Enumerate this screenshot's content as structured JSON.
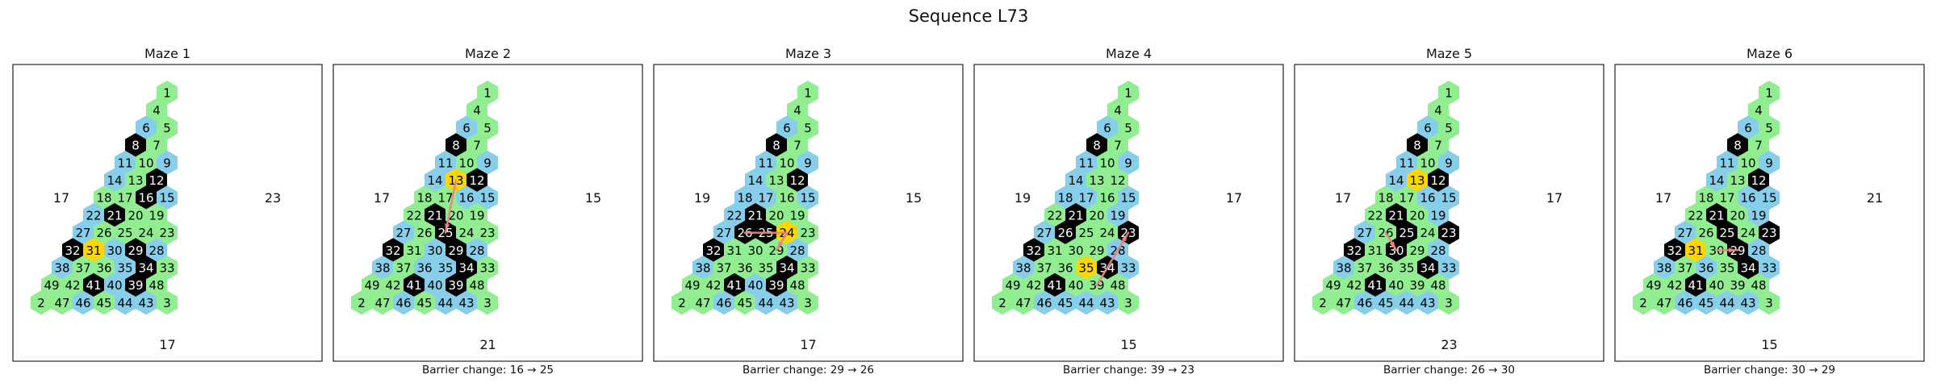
{
  "title": "Sequence L73",
  "colors": {
    "green": "#90EE90",
    "blue": "#87CEEB",
    "black": "#000000",
    "yellow": "#FFD700",
    "path": "#F08080"
  },
  "layout_nodes": [
    {
      "id": 1,
      "row": 0,
      "pos": 0
    },
    {
      "id": 4,
      "row": 1,
      "pos": 0
    },
    {
      "id": 6,
      "row": 2,
      "pos": 0
    },
    {
      "id": 5,
      "row": 2,
      "pos": 1
    },
    {
      "id": 8,
      "row": 3,
      "pos": 0
    },
    {
      "id": 7,
      "row": 3,
      "pos": 1
    },
    {
      "id": 11,
      "row": 4,
      "pos": 0
    },
    {
      "id": 10,
      "row": 4,
      "pos": 1
    },
    {
      "id": 9,
      "row": 4,
      "pos": 2
    },
    {
      "id": 14,
      "row": 5,
      "pos": 0
    },
    {
      "id": 13,
      "row": 5,
      "pos": 1
    },
    {
      "id": 12,
      "row": 5,
      "pos": 2
    },
    {
      "id": 18,
      "row": 6,
      "pos": 0
    },
    {
      "id": 17,
      "row": 6,
      "pos": 1
    },
    {
      "id": 16,
      "row": 6,
      "pos": 2
    },
    {
      "id": 15,
      "row": 6,
      "pos": 3
    },
    {
      "id": 22,
      "row": 7,
      "pos": 0
    },
    {
      "id": 21,
      "row": 7,
      "pos": 1
    },
    {
      "id": 20,
      "row": 7,
      "pos": 2
    },
    {
      "id": 19,
      "row": 7,
      "pos": 3
    },
    {
      "id": 27,
      "row": 8,
      "pos": 0
    },
    {
      "id": 26,
      "row": 8,
      "pos": 1
    },
    {
      "id": 25,
      "row": 8,
      "pos": 2
    },
    {
      "id": 24,
      "row": 8,
      "pos": 3
    },
    {
      "id": 23,
      "row": 8,
      "pos": 4
    },
    {
      "id": 32,
      "row": 9,
      "pos": 0
    },
    {
      "id": 31,
      "row": 9,
      "pos": 1
    },
    {
      "id": 30,
      "row": 9,
      "pos": 2
    },
    {
      "id": 29,
      "row": 9,
      "pos": 3
    },
    {
      "id": 28,
      "row": 9,
      "pos": 4
    },
    {
      "id": 38,
      "row": 10,
      "pos": 0
    },
    {
      "id": 37,
      "row": 10,
      "pos": 1
    },
    {
      "id": 36,
      "row": 10,
      "pos": 2
    },
    {
      "id": 35,
      "row": 10,
      "pos": 3
    },
    {
      "id": 34,
      "row": 10,
      "pos": 4
    },
    {
      "id": 33,
      "row": 10,
      "pos": 5
    },
    {
      "id": 49,
      "row": 11,
      "pos": 0
    },
    {
      "id": 42,
      "row": 11,
      "pos": 1
    },
    {
      "id": 41,
      "row": 11,
      "pos": 2
    },
    {
      "id": 40,
      "row": 11,
      "pos": 3
    },
    {
      "id": 39,
      "row": 11,
      "pos": 4
    },
    {
      "id": 48,
      "row": 11,
      "pos": 5
    },
    {
      "id": 2,
      "row": 12,
      "pos": 0
    },
    {
      "id": 47,
      "row": 12,
      "pos": 1
    },
    {
      "id": 46,
      "row": 12,
      "pos": 2
    },
    {
      "id": 45,
      "row": 12,
      "pos": 3
    },
    {
      "id": 44,
      "row": 12,
      "pos": 4
    },
    {
      "id": 43,
      "row": 12,
      "pos": 5
    },
    {
      "id": 3,
      "row": 12,
      "pos": 6
    }
  ],
  "mazes": [
    {
      "title": "Maze 1",
      "corner_left": "17",
      "corner_right": "23",
      "corner_bottom": "17",
      "caption": "",
      "blue": [
        6,
        11,
        9,
        14,
        15,
        22,
        27,
        38,
        46,
        30,
        35,
        44,
        43,
        28,
        40
      ],
      "black": [
        8,
        16,
        12,
        21,
        32,
        29,
        34,
        41,
        39
      ],
      "yellow": [
        31
      ],
      "path": []
    },
    {
      "title": "Maze 2",
      "corner_left": "17",
      "corner_right": "15",
      "corner_bottom": "21",
      "caption": "Barrier change: 16 → 25",
      "blue": [
        6,
        11,
        9,
        14,
        15,
        27,
        38,
        46,
        30,
        36,
        35,
        44,
        43,
        28,
        40,
        16
      ],
      "black": [
        8,
        12,
        21,
        25,
        32,
        29,
        34,
        41,
        39
      ],
      "yellow": [
        13
      ],
      "path": [
        13,
        25
      ]
    },
    {
      "title": "Maze 3",
      "corner_left": "19",
      "corner_right": "15",
      "corner_bottom": "17",
      "caption": "Barrier change: 29 → 26",
      "blue": [
        6,
        11,
        9,
        14,
        18,
        15,
        17,
        22,
        27,
        38,
        46,
        44,
        43,
        28,
        40
      ],
      "black": [
        8,
        12,
        21,
        26,
        25,
        32,
        34,
        41,
        39
      ],
      "yellow": [
        24
      ],
      "path": [
        26,
        25,
        24,
        29
      ]
    },
    {
      "title": "Maze 4",
      "corner_left": "19",
      "corner_right": "17",
      "corner_bottom": "15",
      "caption": "Barrier change: 39 → 23",
      "blue": [
        6,
        11,
        9,
        14,
        18,
        15,
        17,
        19,
        27,
        38,
        46,
        44,
        43,
        28,
        45,
        33
      ],
      "black": [
        8,
        21,
        26,
        23,
        32,
        34,
        41
      ],
      "yellow": [
        35
      ],
      "path": [
        39,
        28,
        23
      ]
    },
    {
      "title": "Maze 5",
      "corner_left": "17",
      "corner_right": "17",
      "corner_bottom": "23",
      "caption": "Barrier change: 26 → 30",
      "blue": [
        6,
        11,
        9,
        14,
        15,
        16,
        19,
        27,
        38,
        46,
        44,
        43,
        28,
        45,
        33
      ],
      "black": [
        8,
        12,
        21,
        25,
        23,
        32,
        30,
        34,
        41
      ],
      "yellow": [
        13
      ],
      "path": [
        26,
        30
      ]
    },
    {
      "title": "Maze 6",
      "corner_left": "17",
      "corner_right": "21",
      "corner_bottom": "15",
      "caption": "Barrier change: 30 → 29",
      "blue": [
        6,
        11,
        9,
        14,
        15,
        16,
        19,
        27,
        38,
        46,
        44,
        43,
        28,
        33,
        36,
        45
      ],
      "black": [
        8,
        12,
        21,
        25,
        23,
        32,
        29,
        34,
        41
      ],
      "yellow": [
        31
      ],
      "path": [
        30,
        29
      ]
    }
  ]
}
